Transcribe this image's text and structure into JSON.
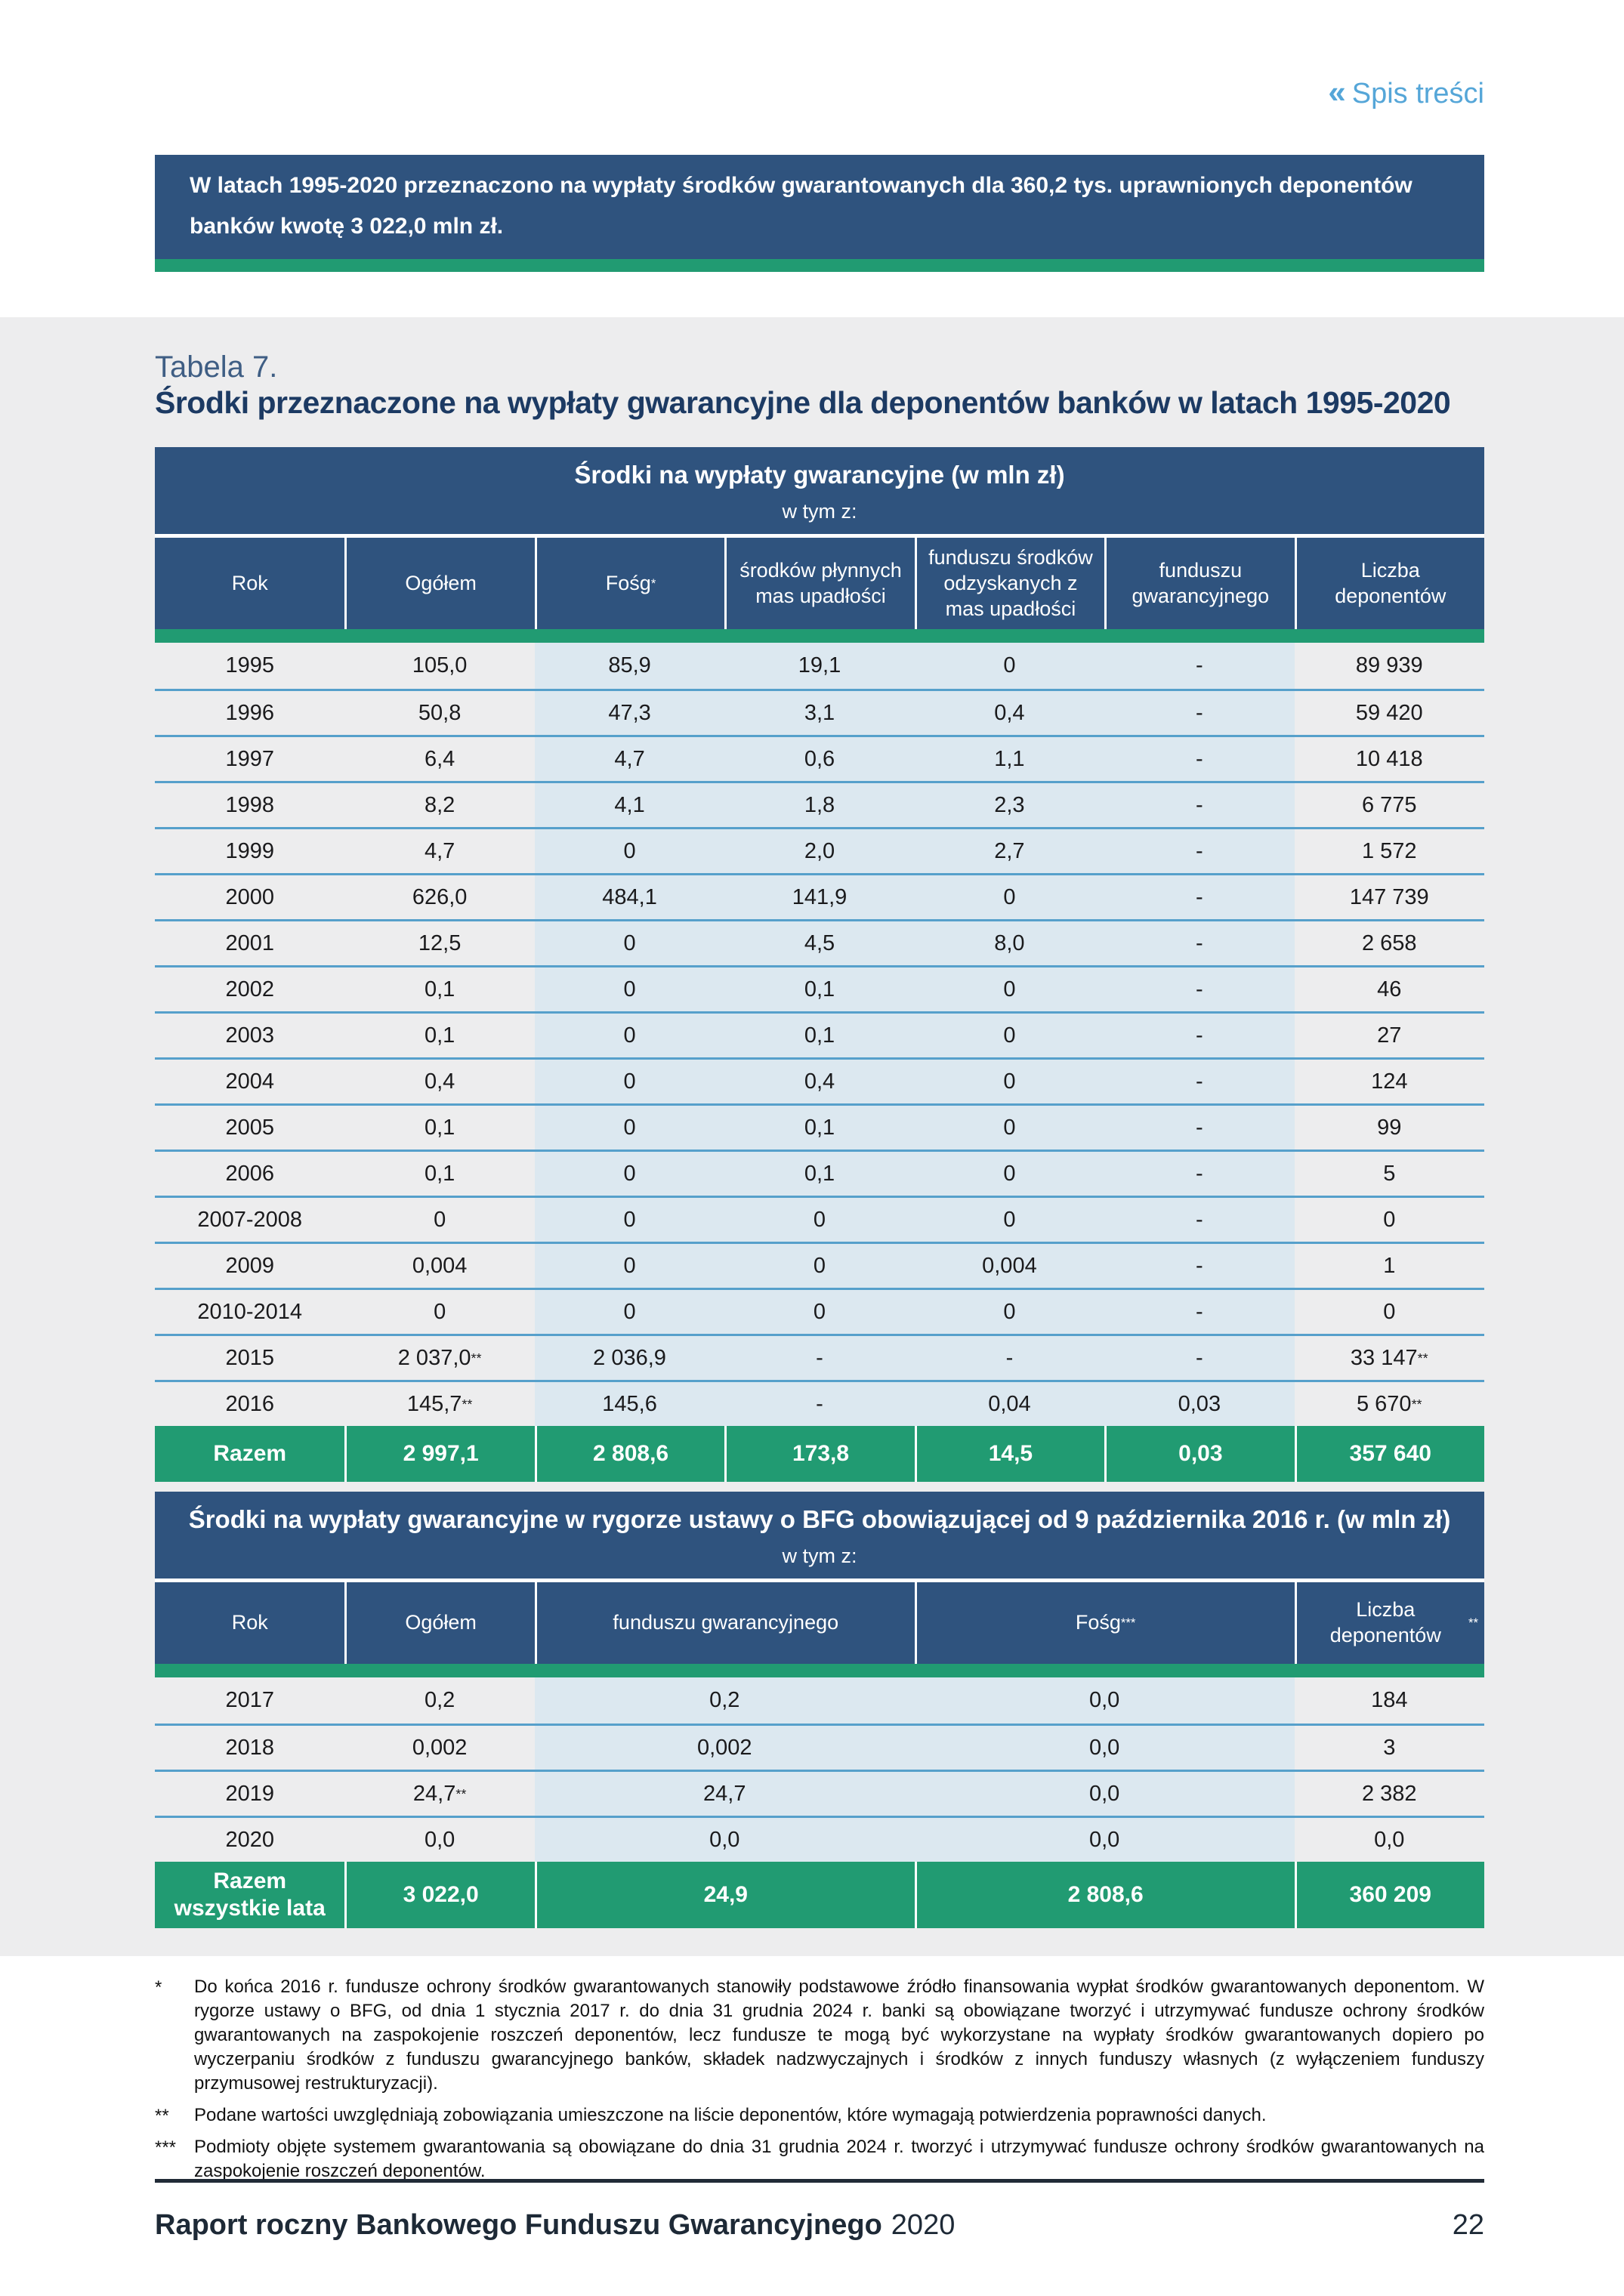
{
  "toc": {
    "chevron": "«",
    "label": "Spis treści"
  },
  "banner": {
    "text": "W latach 1995-2020 przeznaczono na wypłaty środków gwarantowanych dla 360,2 tys. uprawnionych deponentów banków kwotę 3 022,0 mln zł."
  },
  "section": {
    "label": "Tabela 7.",
    "title": "Środki przeznaczone na wypłaty gwarancyjne dla deponentów banków w latach 1995-2020"
  },
  "colors": {
    "navy": "#2f537e",
    "green": "#219b72",
    "tint": "#dce8f0",
    "separator": "#56a0cb",
    "link_blue": "#55a6d8"
  },
  "table1": {
    "title": "Środki na wypłaty gwarancyjne (w mln zł)",
    "subtitle": "w tym z:",
    "columns": [
      "Rok",
      "Ogółem",
      "Fośg*",
      "środków płynnych mas upadłości",
      "funduszu środków odzyskanych z mas upadłości",
      "funduszu gwarancyjnego",
      "Liczba deponentów"
    ],
    "rows": [
      [
        "1995",
        "105,0",
        "85,9",
        "19,1",
        "0",
        "-",
        "89 939"
      ],
      [
        "1996",
        "50,8",
        "47,3",
        "3,1",
        "0,4",
        "-",
        "59 420"
      ],
      [
        "1997",
        "6,4",
        "4,7",
        "0,6",
        "1,1",
        "-",
        "10 418"
      ],
      [
        "1998",
        "8,2",
        "4,1",
        "1,8",
        "2,3",
        "-",
        "6 775"
      ],
      [
        "1999",
        "4,7",
        "0",
        "2,0",
        "2,7",
        "-",
        "1 572"
      ],
      [
        "2000",
        "626,0",
        "484,1",
        "141,9",
        "0",
        "-",
        "147 739"
      ],
      [
        "2001",
        "12,5",
        "0",
        "4,5",
        "8,0",
        "-",
        "2 658"
      ],
      [
        "2002",
        "0,1",
        "0",
        "0,1",
        "0",
        "-",
        "46"
      ],
      [
        "2003",
        "0,1",
        "0",
        "0,1",
        "0",
        "-",
        "27"
      ],
      [
        "2004",
        "0,4",
        "0",
        "0,4",
        "0",
        "-",
        "124"
      ],
      [
        "2005",
        "0,1",
        "0",
        "0,1",
        "0",
        "-",
        "99"
      ],
      [
        "2006",
        "0,1",
        "0",
        "0,1",
        "0",
        "-",
        "5"
      ],
      [
        "2007-2008",
        "0",
        "0",
        "0",
        "0",
        "-",
        "0"
      ],
      [
        "2009",
        "0,004",
        "0",
        "0",
        "0,004",
        "-",
        "1"
      ],
      [
        "2010-2014",
        "0",
        "0",
        "0",
        "0",
        "-",
        "0"
      ],
      [
        "2015",
        "2 037,0**",
        "2 036,9",
        "-",
        "-",
        "-",
        "33 147**"
      ],
      [
        "2016",
        "145,7**",
        "145,6",
        "-",
        "0,04",
        "0,03",
        "5 670**"
      ]
    ],
    "total": [
      "Razem",
      "2 997,1",
      "2 808,6",
      "173,8",
      "14,5",
      "0,03",
      "357 640"
    ]
  },
  "table2": {
    "title": "Środki na wypłaty gwarancyjne w rygorze ustawy o BFG obowiązującej od 9 października 2016 r. (w mln zł)",
    "subtitle": "w tym z:",
    "columns": [
      "Rok",
      "Ogółem",
      "funduszu gwarancyjnego",
      "Fośg***",
      "Liczba deponentów**"
    ],
    "rows": [
      [
        "2017",
        "0,2",
        "0,2",
        "0,0",
        "184"
      ],
      [
        "2018",
        "0,002",
        "0,002",
        "0,0",
        "3"
      ],
      [
        "2019",
        "24,7**",
        "24,7",
        "0,0",
        "2 382"
      ],
      [
        "2020",
        "0,0",
        "0,0",
        "0,0",
        "0,0"
      ]
    ],
    "total": [
      "Razem wszystkie lata",
      "3 022,0",
      "24,9",
      "2 808,6",
      "360 209"
    ]
  },
  "footnotes": [
    {
      "marker": "*",
      "text": "Do końca 2016 r. fundusze ochrony środków gwarantowanych stanowiły podstawowe źródło finansowania wypłat środków gwarantowanych deponentom. W rygorze ustawy o BFG, od dnia 1 stycznia 2017 r. do dnia 31 grudnia 2024 r. banki są obowiązane tworzyć i utrzymywać fundusze ochrony środków gwarantowanych na zaspokojenie roszczeń deponentów, lecz fundusze te mogą być wykorzystane na wypłaty środków gwarantowanych dopiero po wyczerpaniu środków z funduszu gwarancyjnego banków, składek nadzwyczajnych i środków z innych funduszy własnych (z wyłączeniem funduszy przymusowej restrukturyzacji)."
    },
    {
      "marker": "**",
      "text": "Podane wartości uwzględniają zobowiązania umieszczone na liście deponentów, które wymagają potwierdzenia poprawności danych."
    },
    {
      "marker": "***",
      "text": "Podmioty objęte systemem gwarantowania są obowiązane do dnia 31 grudnia 2024 r. tworzyć i utrzymywać fundusze ochrony środków gwarantowanych na zaspokojenie roszczeń deponentów."
    }
  ],
  "footer": {
    "title": "Raport roczny Bankowego Funduszu Gwarancyjnego",
    "year": "2020",
    "page": "22"
  }
}
